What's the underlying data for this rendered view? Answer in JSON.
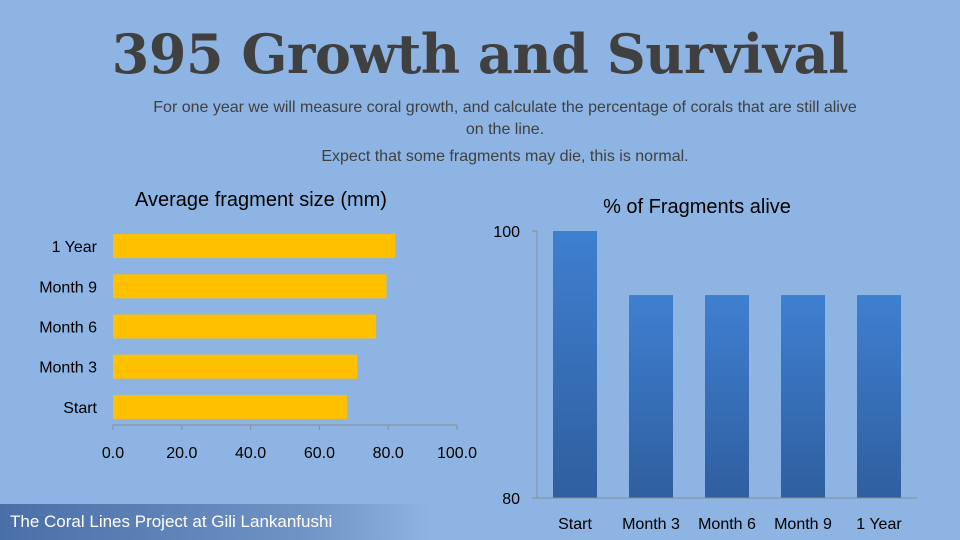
{
  "slide": {
    "title": "395 Growth and Survival",
    "subtitle": "For one year we will measure coral growth, and calculate the percentage of corals that are still alive on the line.",
    "note": "Expect that some fragments may die, this is normal.",
    "footer": "The Coral Lines Project at Gili Lankanfushi"
  },
  "colors": {
    "background": "#8db4e2",
    "bar_size": "#ffc000",
    "bar_alive": "#3c78c8",
    "axis": "#8c8c8c"
  },
  "chart_data": [
    {
      "type": "bar",
      "orientation": "horizontal",
      "title": "Average fragment size (mm)",
      "categories": [
        "Start",
        "Month 3",
        "Month 6",
        "Month 9",
        "1 Year"
      ],
      "values": [
        68,
        71,
        76.5,
        79.5,
        82
      ],
      "xlim": [
        0,
        100
      ],
      "ticks": [
        "0.0",
        "20.0",
        "40.0",
        "60.0",
        "80.0",
        "100.0"
      ],
      "grid": false,
      "legend": "none"
    },
    {
      "type": "bar",
      "orientation": "vertical",
      "title": "% of Fragments alive",
      "categories": [
        "Start",
        "Month 3",
        "Month 6",
        "Month 9",
        "1 Year"
      ],
      "values": [
        100,
        95.2,
        95.2,
        95.2,
        95.2
      ],
      "ylim": [
        80,
        100
      ],
      "ticks": [
        "80",
        "100"
      ],
      "grid": false,
      "legend": "none"
    }
  ]
}
